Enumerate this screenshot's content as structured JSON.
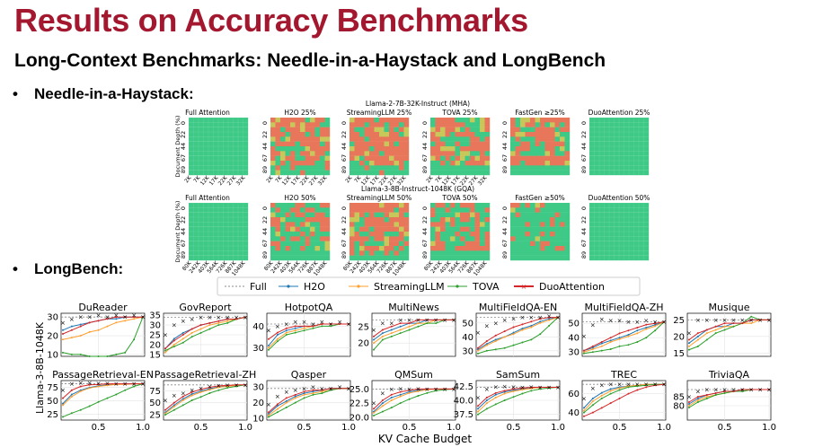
{
  "slide": {
    "title": "Results on Accuracy Benchmarks",
    "subtitle": "Long-Context Benchmarks: Needle-in-a-Haystack and LongBench",
    "bullet_dot": "•",
    "bullets": [
      "Needle-in-a-Haystack:",
      "LongBench:"
    ]
  },
  "niah": {
    "ylabel": "Document Depth (%)",
    "y_ticks": [
      "0",
      "22",
      "44",
      "67",
      "89"
    ],
    "colors": {
      "pass": "#3ec986",
      "mid": "#c8c75a",
      "fail": "#e8765a"
    },
    "rows": [
      {
        "model": "Llama-2-7B-32K-Instruct (MHA)",
        "x_ticks": [
          "2K",
          "7K",
          "12K",
          "17K",
          "22K",
          "27K",
          "32K"
        ],
        "panels": [
          {
            "title": "Full Attention",
            "fail_rate": 0.0
          },
          {
            "title": "H2O 25%",
            "fail_rate": 0.7
          },
          {
            "title": "StreamingLLM 25%",
            "fail_rate": 0.85
          },
          {
            "title": "TOVA 25%",
            "fail_rate": 0.55
          },
          {
            "title": "FastGen ≥25%",
            "fail_rate": 0.65
          },
          {
            "title": "DuoAttention 25%",
            "fail_rate": 0.0
          }
        ]
      },
      {
        "model": "Llama-3-8B-Instruct-1048K (GQA)",
        "x_ticks": [
          "80K",
          "242K",
          "403K",
          "564K",
          "726K",
          "887K",
          "1048K"
        ],
        "panels": [
          {
            "title": "Full Attention",
            "fail_rate": 0.0
          },
          {
            "title": "H2O 50%",
            "fail_rate": 0.5
          },
          {
            "title": "StreamingLLM 50%",
            "fail_rate": 0.8
          },
          {
            "title": "TOVA 50%",
            "fail_rate": 0.5
          },
          {
            "title": "FastGen ≥50%",
            "fail_rate": 0.15
          },
          {
            "title": "DuoAttention 50%",
            "fail_rate": 0.0
          }
        ]
      }
    ]
  },
  "longbench": {
    "legend": [
      {
        "name": "Full",
        "color": "#888888",
        "style": "dashed"
      },
      {
        "name": "H2O",
        "color": "#1f77b4",
        "style": "solid"
      },
      {
        "name": "StreamingLLM",
        "color": "#ff9f2e",
        "style": "solid"
      },
      {
        "name": "TOVA",
        "color": "#2ca02c",
        "style": "solid"
      },
      {
        "name": "DuoAttention",
        "color": "#d62728",
        "style": "bold"
      }
    ],
    "xlabel": "KV Cache Budget",
    "ylabel": "Llama-3-8B-1048K",
    "x_tick_labels": [
      "0.5",
      "1.0"
    ],
    "x": [
      0.1,
      0.2,
      0.3,
      0.4,
      0.5,
      0.6,
      0.7,
      0.8,
      0.9,
      1.0
    ],
    "panels": [
      {
        "title": "DuReader",
        "ylim": [
          9,
          32
        ],
        "yticks": [
          "10",
          "20",
          "30"
        ],
        "full": 30,
        "series": [
          [
            23,
            25,
            26,
            27,
            28,
            29,
            29,
            30,
            30,
            30
          ],
          [
            18,
            19,
            20,
            22,
            23,
            25,
            27,
            28,
            29,
            30
          ],
          [
            11,
            10,
            10,
            9,
            9,
            9,
            10,
            11,
            18,
            30
          ],
          [
            21,
            23,
            25,
            27,
            28,
            29,
            30,
            30,
            30,
            30
          ],
          [
            27,
            29,
            30,
            30,
            31,
            30,
            31,
            30,
            31,
            30
          ]
        ]
      },
      {
        "title": "GovReport",
        "ylim": [
          14,
          36
        ],
        "yticks": [
          "15",
          "20",
          "25",
          "30",
          "35"
        ],
        "full": 34,
        "series": [
          [
            18,
            23,
            26,
            28,
            30,
            31,
            32,
            33,
            33,
            34
          ],
          [
            16,
            20,
            23,
            26,
            28,
            30,
            31,
            32,
            33,
            34
          ],
          [
            17,
            19,
            21,
            24,
            26,
            28,
            30,
            31,
            33,
            34
          ],
          [
            18,
            22,
            25,
            28,
            30,
            31,
            32,
            33,
            33,
            34
          ],
          [
            25,
            30,
            32,
            33,
            34,
            34,
            34,
            34,
            34,
            34
          ]
        ]
      },
      {
        "title": "HotpotQA",
        "ylim": [
          26,
          46
        ],
        "yticks": [
          "30",
          "40"
        ],
        "full": 41,
        "series": [
          [
            31,
            36,
            38,
            39,
            40,
            40,
            41,
            41,
            41,
            41
          ],
          [
            30,
            34,
            37,
            38,
            39,
            40,
            41,
            41,
            41,
            41
          ],
          [
            29,
            33,
            36,
            37,
            38,
            39,
            40,
            40,
            41,
            41
          ],
          [
            34,
            37,
            39,
            40,
            40,
            40,
            41,
            41,
            41,
            41
          ],
          [
            38,
            40,
            41,
            42,
            42,
            41,
            42,
            41,
            42,
            41
          ]
        ]
      },
      {
        "title": "MultiNews",
        "ylim": [
          16,
          29
        ],
        "yticks": [
          "20",
          "25"
        ],
        "full": 27,
        "series": [
          [
            21,
            23,
            24,
            25,
            26,
            26,
            27,
            27,
            27,
            27
          ],
          [
            20,
            22,
            23,
            24,
            25,
            26,
            26,
            27,
            27,
            27
          ],
          [
            18,
            21,
            22,
            23,
            24,
            25,
            26,
            26,
            27,
            27
          ],
          [
            22,
            24,
            25,
            26,
            26,
            27,
            27,
            27,
            27,
            27
          ],
          [
            24,
            26,
            26,
            27,
            27,
            27,
            27,
            27,
            27,
            27
          ]
        ]
      },
      {
        "title": "MultiFieldQA-EN",
        "ylim": [
          26,
          57
        ],
        "yticks": [
          "30",
          "40",
          "50"
        ],
        "full": 54,
        "series": [
          [
            31,
            35,
            38,
            40,
            43,
            46,
            48,
            51,
            53,
            54
          ],
          [
            30,
            34,
            37,
            40,
            42,
            45,
            47,
            50,
            52,
            54
          ],
          [
            28,
            30,
            31,
            32,
            34,
            36,
            38,
            42,
            48,
            54
          ],
          [
            32,
            37,
            41,
            44,
            47,
            49,
            51,
            53,
            54,
            54
          ],
          [
            43,
            48,
            50,
            52,
            53,
            54,
            54,
            54,
            55,
            54
          ]
        ]
      },
      {
        "title": "MultiFieldQA-ZH",
        "ylim": [
          27,
          57
        ],
        "yticks": [
          "30",
          "40",
          "50"
        ],
        "full": 51,
        "series": [
          [
            31,
            33,
            36,
            38,
            40,
            42,
            45,
            47,
            49,
            51
          ],
          [
            30,
            32,
            34,
            37,
            39,
            41,
            43,
            46,
            48,
            51
          ],
          [
            29,
            30,
            31,
            32,
            34,
            35,
            37,
            40,
            45,
            51
          ],
          [
            31,
            34,
            37,
            40,
            43,
            45,
            47,
            49,
            50,
            51
          ],
          [
            41,
            49,
            53,
            52,
            52,
            51,
            51,
            52,
            51,
            51
          ]
        ]
      },
      {
        "title": "Musique",
        "ylim": [
          14,
          27
        ],
        "yticks": [
          "15",
          "20",
          "25"
        ],
        "full": 25,
        "series": [
          [
            18,
            20,
            22,
            23,
            23,
            24,
            24,
            25,
            25,
            25
          ],
          [
            17,
            19,
            21,
            22,
            23,
            23,
            24,
            24,
            25,
            25
          ],
          [
            16,
            17,
            19,
            21,
            22,
            23,
            24,
            26,
            25,
            25
          ],
          [
            19,
            21,
            22,
            23,
            24,
            24,
            24,
            25,
            25,
            25
          ],
          [
            21,
            25,
            25,
            25,
            25,
            25,
            25,
            25,
            25,
            25
          ]
        ]
      },
      {
        "title": "PassageRetrieval-EN",
        "ylim": [
          14,
          88
        ],
        "yticks": [
          "25",
          "50",
          "75"
        ],
        "full": 82,
        "series": [
          [
            45,
            62,
            70,
            75,
            78,
            80,
            81,
            82,
            82,
            82
          ],
          [
            42,
            58,
            68,
            74,
            77,
            79,
            81,
            81,
            82,
            82
          ],
          [
            20,
            27,
            33,
            40,
            48,
            55,
            62,
            70,
            77,
            82
          ],
          [
            55,
            70,
            77,
            80,
            81,
            82,
            82,
            82,
            82,
            82
          ],
          [
            70,
            82,
            84,
            84,
            83,
            83,
            82,
            82,
            82,
            82
          ]
        ]
      },
      {
        "title": "PassageRetrieval-ZH",
        "ylim": [
          14,
          96
        ],
        "yticks": [
          "25",
          "50",
          "75"
        ],
        "full": 87,
        "series": [
          [
            30,
            45,
            58,
            68,
            74,
            79,
            83,
            85,
            86,
            87
          ],
          [
            28,
            42,
            55,
            65,
            72,
            77,
            82,
            84,
            86,
            87
          ],
          [
            25,
            35,
            45,
            55,
            62,
            70,
            76,
            81,
            84,
            87
          ],
          [
            35,
            50,
            63,
            72,
            78,
            82,
            85,
            86,
            87,
            87
          ],
          [
            55,
            65,
            70,
            76,
            80,
            84,
            86,
            87,
            87,
            87
          ]
        ]
      },
      {
        "title": "Qasper",
        "ylim": [
          9,
          34
        ],
        "yticks": [
          "10",
          "20",
          "30"
        ],
        "full": 29,
        "series": [
          [
            13,
            18,
            21,
            24,
            26,
            27,
            28,
            29,
            29,
            29
          ],
          [
            12,
            16,
            20,
            23,
            25,
            26,
            27,
            28,
            29,
            29
          ],
          [
            11,
            14,
            17,
            20,
            23,
            25,
            26,
            28,
            29,
            29
          ],
          [
            14,
            19,
            23,
            25,
            27,
            28,
            28,
            29,
            29,
            29
          ],
          [
            19,
            24,
            27,
            28,
            29,
            30,
            29,
            29,
            30,
            29
          ]
        ]
      },
      {
        "title": "QMSum",
        "ylim": [
          19.5,
          26.5
        ],
        "yticks": [
          "20.0",
          "22.5",
          "25.0"
        ],
        "full": 25,
        "series": [
          [
            21,
            22.5,
            23.5,
            24,
            24.5,
            24.8,
            25,
            25,
            25,
            25
          ],
          [
            20.8,
            22,
            23,
            23.7,
            24.3,
            24.6,
            24.9,
            25,
            25,
            25
          ],
          [
            20.3,
            21,
            21.7,
            22.5,
            23.2,
            23.8,
            24.3,
            24.7,
            24.9,
            25
          ],
          [
            21.5,
            23,
            24,
            24.5,
            24.8,
            25,
            25,
            25,
            25,
            25
          ],
          [
            22.5,
            24.3,
            25,
            25.1,
            25,
            25.1,
            25,
            25,
            25,
            25
          ]
        ]
      },
      {
        "title": "SamSum",
        "ylim": [
          36.5,
          43.5
        ],
        "yticks": [
          "37.5",
          "40.0",
          "42.5"
        ],
        "full": 42.3,
        "series": [
          [
            38.5,
            40,
            41,
            41.5,
            41.8,
            42,
            42.2,
            42.3,
            42.3,
            42.3
          ],
          [
            38,
            39.5,
            40.5,
            41.2,
            41.6,
            41.9,
            42.1,
            42.3,
            42.3,
            42.3
          ],
          [
            37.5,
            38.5,
            39.3,
            40,
            40.6,
            41.2,
            41.7,
            42,
            42.2,
            42.3
          ],
          [
            39,
            40.5,
            41.3,
            41.7,
            42,
            42.2,
            42.3,
            42.3,
            42.3,
            42.3
          ],
          [
            40.5,
            42,
            42.4,
            42.5,
            42.4,
            42.3,
            42.4,
            42.3,
            42.3,
            42.3
          ]
        ]
      },
      {
        "title": "TREC",
        "ylim": [
          32,
          74
        ],
        "yticks": [
          "40",
          "60"
        ],
        "full": 70,
        "series": [
          [
            45,
            55,
            61,
            65,
            67,
            68,
            69,
            70,
            70,
            70
          ],
          [
            42,
            52,
            58,
            63,
            66,
            68,
            69,
            70,
            70,
            70
          ],
          [
            40,
            48,
            55,
            60,
            64,
            67,
            68,
            69,
            70,
            70
          ],
          [
            36,
            40,
            45,
            50,
            55,
            60,
            64,
            67,
            69,
            70
          ],
          [
            55,
            66,
            69,
            70,
            70,
            70,
            70,
            70,
            70,
            70
          ]
        ]
      },
      {
        "title": "TriviaQA",
        "ylim": [
          72,
          94
        ],
        "yticks": [
          "80",
          "85"
        ],
        "full": 89,
        "series": [
          [
            81,
            84,
            86,
            87,
            88,
            88,
            89,
            89,
            89,
            89
          ],
          [
            80,
            83,
            85,
            86,
            87,
            88,
            88,
            89,
            89,
            89
          ],
          [
            79,
            82,
            84,
            86,
            87,
            88,
            88,
            89,
            89,
            89
          ],
          [
            82,
            85,
            86,
            87,
            88,
            88,
            89,
            89,
            89,
            89
          ],
          [
            85,
            88,
            89,
            89,
            89,
            89,
            89,
            89,
            89,
            89
          ]
        ]
      }
    ]
  }
}
